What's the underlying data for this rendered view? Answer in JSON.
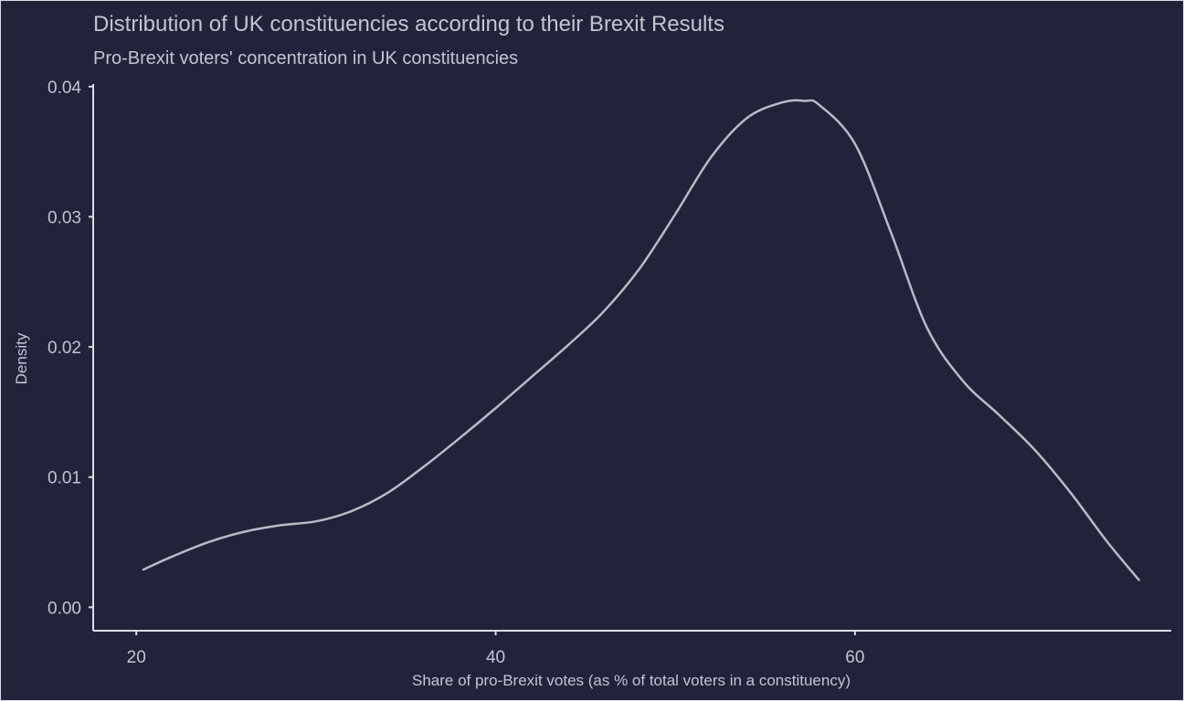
{
  "chart_data": {
    "type": "area",
    "title": "Distribution of UK constituencies according to their Brexit Results",
    "subtitle": "Pro-Brexit voters' concentration in UK constituencies",
    "xlabel": "Share of pro-Brexit votes (as % of total voters in a constituency)",
    "ylabel": "Density",
    "xlim": [
      17.6,
      77.6
    ],
    "ylim": [
      -0.0018,
      0.0402
    ],
    "xticks": [
      20,
      40,
      60
    ],
    "yticks": [
      0.0,
      0.01,
      0.02,
      0.03,
      0.04
    ],
    "xtick_labels": [
      "20",
      "40",
      "60"
    ],
    "ytick_labels": [
      "0.00",
      "0.01",
      "0.02",
      "0.03",
      "0.04"
    ],
    "grid": false,
    "series": [
      {
        "x": [
          20.4,
          22.0,
          24.0,
          26.0,
          28.0,
          30.0,
          32.0,
          34.0,
          36.0,
          38.0,
          40.0,
          42.0,
          44.0,
          46.0,
          48.0,
          50.0,
          52.0,
          54.0,
          56.0,
          57.2,
          58.0,
          60.0,
          62.0,
          64.0,
          66.0,
          68.0,
          70.0,
          72.0,
          74.0,
          75.8
        ],
        "values": [
          0.0029,
          0.0039,
          0.005,
          0.0058,
          0.0063,
          0.0066,
          0.0074,
          0.0088,
          0.0108,
          0.013,
          0.0153,
          0.0177,
          0.0201,
          0.0227,
          0.026,
          0.0302,
          0.0346,
          0.0376,
          0.0388,
          0.0389,
          0.0386,
          0.0356,
          0.0288,
          0.0215,
          0.0174,
          0.0148,
          0.0121,
          0.0088,
          0.0051,
          0.0021
        ]
      }
    ],
    "colors": {
      "background": "#22233b",
      "line": "#b9bac4",
      "text": "#c3c4d0",
      "axis": "#dcdde6"
    }
  }
}
